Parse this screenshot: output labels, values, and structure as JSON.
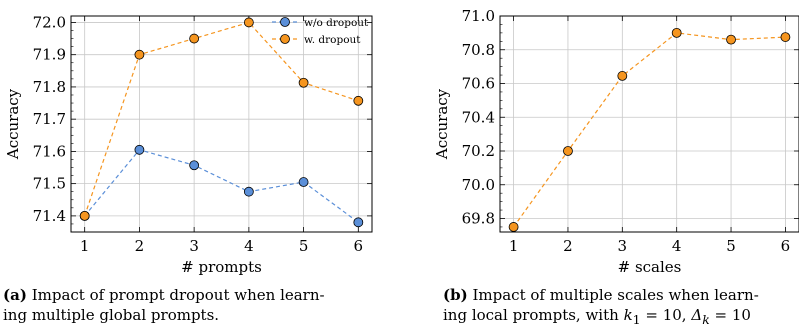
{
  "colors": {
    "blue": "#5b8fd8",
    "orange": "#f5951f",
    "grid": "#c8c8c8",
    "axis": "#000000"
  },
  "chart_data": [
    {
      "type": "line",
      "xlabel": "# prompts",
      "ylabel": "Accuracy",
      "x": [
        1,
        2,
        3,
        4,
        5,
        6
      ],
      "ylim": [
        71.35,
        72.02
      ],
      "yticks": [
        "71.4",
        "71.5",
        "71.6",
        "71.7",
        "71.8",
        "71.9",
        "72.0"
      ],
      "xticks": [
        "1",
        "2",
        "3",
        "4",
        "5",
        "6"
      ],
      "grid": true,
      "legend": "top-right",
      "series": [
        {
          "name": "w/o dropout",
          "color": "#5b8fd8",
          "values": [
            71.4,
            71.605,
            71.557,
            71.475,
            71.505,
            71.38
          ]
        },
        {
          "name": "w. dropout",
          "color": "#f5951f",
          "values": [
            71.4,
            71.9,
            71.95,
            72.0,
            71.813,
            71.757
          ]
        }
      ],
      "caption": {
        "label": "(a)",
        "line1": "Impact of prompt dropout when learn-",
        "line2": "ing multiple global prompts."
      }
    },
    {
      "type": "line",
      "xlabel": "# scales",
      "ylabel": "Accuracy",
      "x": [
        1,
        2,
        3,
        4,
        5,
        6
      ],
      "ylim": [
        69.72,
        71.0
      ],
      "yticks": [
        "69.8",
        "70.0",
        "70.2",
        "70.4",
        "70.6",
        "70.8",
        "71.0"
      ],
      "xticks": [
        "1",
        "2",
        "3",
        "4",
        "5",
        "6"
      ],
      "grid": true,
      "series": [
        {
          "color": "#f5951f",
          "values": [
            69.75,
            70.2,
            70.645,
            70.9,
            70.86,
            70.875
          ]
        }
      ],
      "caption": {
        "label": "(b)",
        "line1": "Impact of multiple scales when learn-",
        "line2_a": "ing local prompts, with ",
        "k1": "k",
        "k1_sub": "1",
        "k1_val": " = 10, ",
        "delta": "Δ",
        "delta_sub": "k",
        "delta_val": " = 10"
      }
    }
  ]
}
